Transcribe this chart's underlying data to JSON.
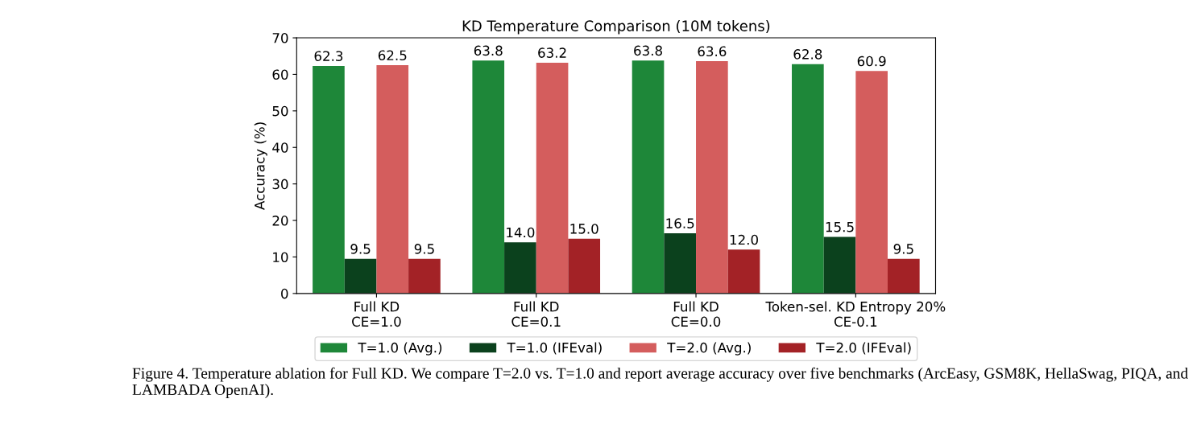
{
  "chart_data": {
    "type": "bar",
    "title": "KD Temperature Comparison (10M tokens)",
    "ylabel": "Accuracy (%)",
    "categories": [
      "Full KD\nCE=1.0",
      "Full KD\nCE=0.1",
      "Full KD\nCE=0.0",
      "Token-sel. KD Entropy 20%\nCE-0.1"
    ],
    "series": [
      {
        "name": "T=1.0 (Avg.)",
        "color": "#1e8739",
        "values": [
          62.3,
          63.8,
          63.8,
          62.8
        ],
        "value_labels": [
          "62.3",
          "63.8",
          "63.8",
          "62.8"
        ]
      },
      {
        "name": "T=1.0 (IFEval)",
        "color": "#0b411d",
        "values": [
          9.5,
          14.0,
          16.5,
          15.5
        ],
        "value_labels": [
          "9.5",
          "14.0",
          "16.5",
          "15.5"
        ]
      },
      {
        "name": "T=2.0 (Avg.)",
        "color": "#d45d5d",
        "values": [
          62.5,
          63.2,
          63.6,
          60.9
        ],
        "value_labels": [
          "62.5",
          "63.2",
          "63.6",
          "60.9"
        ]
      },
      {
        "name": "T=2.0 (IFEval)",
        "color": "#a32226",
        "values": [
          9.5,
          15.0,
          12.0,
          9.5
        ],
        "value_labels": [
          "9.5",
          "15.0",
          "12.0",
          "9.5"
        ]
      }
    ],
    "ylim": [
      0,
      70
    ],
    "yticks": [
      0,
      10,
      20,
      30,
      40,
      50,
      60,
      70
    ],
    "grid": false,
    "legend": "bottom",
    "annotations": [
      "Figure 4. Temperature ablation for Full KD. We compare T=2.0 vs. T=1.0 and report average accuracy over five benchmarks (ArcEasy, GSM8K, HellaSwag, PIQA, and LAMBADA OpenAI)."
    ]
  }
}
